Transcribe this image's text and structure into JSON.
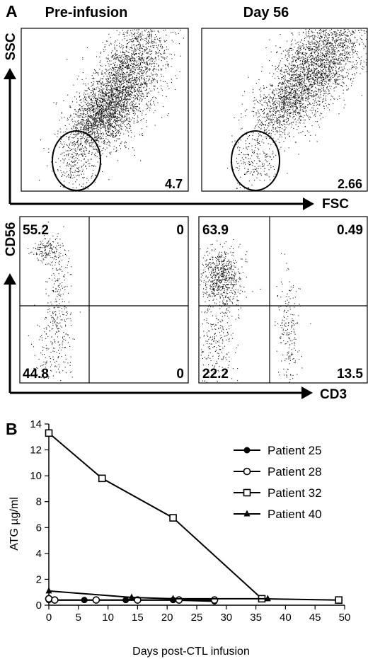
{
  "panel_a": {
    "label": "A",
    "col_titles": [
      "Pre-infusion",
      "Day 56"
    ],
    "scatter_axes": {
      "y": "SSC",
      "x": "FSC"
    },
    "scatter_gate_values": [
      "4.7",
      "2.66"
    ],
    "quad_axes": {
      "y": "CD56",
      "x": "CD3"
    },
    "quad_values": [
      {
        "ul": "55.2",
        "ur": "0",
        "ll": "44.8",
        "lr": "0"
      },
      {
        "ul": "63.9",
        "ur": "0.49",
        "ll": "22.2",
        "lr": "13.5"
      }
    ]
  },
  "panel_b": {
    "label": "B"
  },
  "chart_data": {
    "type": "line",
    "xlabel": "Days post-CTL infusion",
    "ylabel": "ATG µg/ml",
    "xlim": [
      0,
      50
    ],
    "ylim": [
      0,
      14
    ],
    "xticks": [
      0,
      5,
      10,
      15,
      20,
      25,
      30,
      35,
      40,
      45,
      50
    ],
    "yticks": [
      0,
      2,
      4,
      6,
      8,
      10,
      12,
      14
    ],
    "grid": false,
    "legend": "right",
    "series": [
      {
        "name": "Patient 25",
        "marker": "filled-circle",
        "x": [
          0,
          6,
          13,
          21,
          28
        ],
        "y": [
          0.4,
          0.4,
          0.4,
          0.4,
          0.3
        ]
      },
      {
        "name": "Patient 28",
        "marker": "open-circle",
        "x": [
          0,
          1,
          8,
          15,
          22,
          28
        ],
        "y": [
          0.5,
          0.4,
          0.4,
          0.4,
          0.4,
          0.4
        ]
      },
      {
        "name": "Patient 32",
        "marker": "open-square",
        "x": [
          0,
          9,
          21,
          36,
          49
        ],
        "y": [
          13.3,
          9.8,
          6.75,
          0.5,
          0.4
        ]
      },
      {
        "name": "Patient 40",
        "marker": "triangle",
        "x": [
          0,
          14,
          21,
          37
        ],
        "y": [
          1.1,
          0.6,
          0.5,
          0.5
        ]
      }
    ]
  }
}
